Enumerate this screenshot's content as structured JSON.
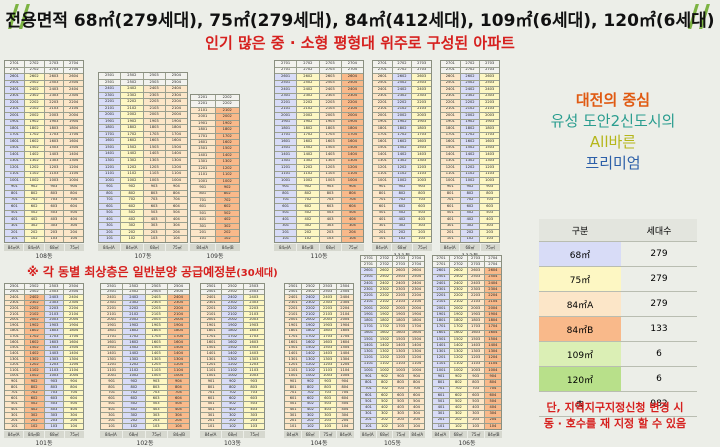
{
  "header": {
    "title": "전용면적 68㎡(279세대), 75㎡(279세대), 84㎡(412세대), 109㎡(6세대), 120㎡(6세대)",
    "subtitle": "인기 많은 중 · 소형 평형대 위주로 구성된 아파트"
  },
  "notice": {
    "text": "※ 각 동별 최상층은 일반분양 공급예정분",
    "count": "(30세대)"
  },
  "promo": {
    "line1": "대전의 중심",
    "line2": "유성 도안2신도시의",
    "line3": "All바른",
    "line4": "프리미엄"
  },
  "table": {
    "col1": "구분",
    "col2": "세대수",
    "rows": [
      {
        "type": "68㎡",
        "count": "279",
        "color": "#d8dcf7"
      },
      {
        "type": "75㎡",
        "count": "279",
        "color": "#fdf7c3"
      },
      {
        "type": "84㎡A",
        "count": "279",
        "color": "#fce6c8"
      },
      {
        "type": "84㎡B",
        "count": "133",
        "color": "#f9b98a"
      },
      {
        "type": "109㎡",
        "count": "6",
        "color": "#dbefb5"
      },
      {
        "type": "120㎡",
        "count": "6",
        "color": "#b8e08a"
      },
      {
        "type": "총",
        "count": "982",
        "color": "#eceee8"
      }
    ]
  },
  "footnote": {
    "line1": "단, 지역지구지정신청 변경 시",
    "line2": "동 · 호수를 재 지정 할 수 있음"
  },
  "buildings": [
    {
      "name": "108동",
      "floors": 27,
      "units": 4,
      "types": [
        "68",
        "75",
        "84a",
        "84a"
      ],
      "labels": [
        "84㎡A",
        "84㎡A",
        "68㎡",
        "75㎡"
      ]
    },
    {
      "name": "107동",
      "floors": 25,
      "units": 4,
      "types": [
        "68",
        "75",
        "84a",
        "84a"
      ],
      "labels": [
        "84㎡A",
        "84㎡A",
        "68㎡",
        "75㎡"
      ]
    },
    {
      "name": "109동",
      "floors": 22,
      "units": 2,
      "types": [
        "84a",
        "84b"
      ],
      "labels": [
        "84㎡A",
        "84㎡B"
      ]
    },
    {
      "name": "110동",
      "floors": 27,
      "units": 4,
      "types": [
        "68",
        "75",
        "84a",
        "84b"
      ],
      "labels": [
        "84㎡A",
        "84㎡B",
        "68㎡",
        "75㎡"
      ]
    },
    {
      "name": "111동",
      "floors": 27,
      "units": 3,
      "types": [
        "84a",
        "68",
        "75"
      ],
      "labels": [
        "84㎡A",
        "68㎡",
        "75㎡"
      ]
    },
    {
      "name": "112동",
      "floors": 27,
      "units": 3,
      "types": [
        "84a",
        "68",
        "75"
      ],
      "labels": [
        "84㎡A",
        "68㎡",
        "75㎡"
      ]
    },
    {
      "name": "101동",
      "floors": 25,
      "units": 4,
      "types": [
        "84a",
        "84b",
        "68",
        "75"
      ],
      "labels": [
        "84㎡A",
        "84㎡B",
        "68㎡",
        "75㎡"
      ]
    },
    {
      "name": "102동",
      "floors": 25,
      "units": 4,
      "types": [
        "84a",
        "68",
        "75",
        "84b"
      ],
      "labels": [
        "84㎡A",
        "68㎡",
        "75㎡",
        "84㎡B"
      ]
    },
    {
      "name": "103동",
      "floors": 25,
      "units": 3,
      "types": [
        "84a",
        "68",
        "75"
      ],
      "labels": [
        "84㎡A",
        "68㎡",
        "75㎡"
      ]
    },
    {
      "name": "104동",
      "floors": 25,
      "units": 4,
      "types": [
        "84a",
        "68",
        "75",
        "84a"
      ],
      "labels": [
        "84㎡A",
        "68㎡",
        "75㎡",
        "84㎡A"
      ]
    },
    {
      "name": "105동",
      "floors": 27,
      "units": 4,
      "types": [
        "68",
        "75",
        "84a",
        "84a"
      ],
      "labels": [
        "84㎡A",
        "68㎡",
        "75㎡",
        "84㎡A"
      ]
    },
    {
      "name": "106동",
      "floors": 27,
      "units": 4,
      "types": [
        "68",
        "75",
        "84a",
        "84b"
      ],
      "labels": [
        "84㎡A",
        "68㎡",
        "75㎡",
        "84㎡B"
      ]
    }
  ]
}
